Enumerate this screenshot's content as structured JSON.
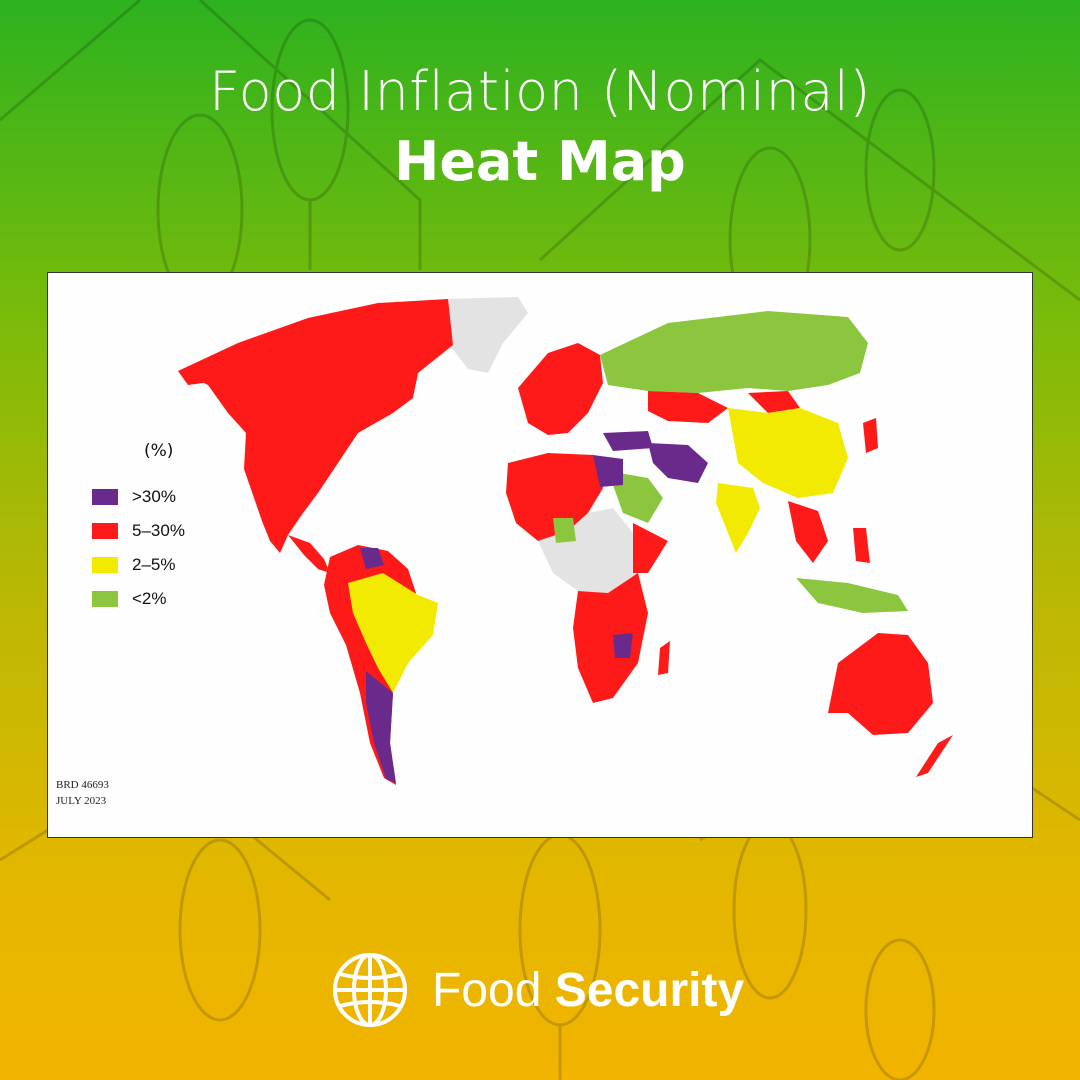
{
  "header": {
    "title_line1": "Food Inflation (Nominal)",
    "title_line2": "Heat Map"
  },
  "legend": {
    "title": "(%)",
    "items": [
      {
        "label": ">30%",
        "color": "#6a2a8c"
      },
      {
        "label": "5–30%",
        "color": "#ff1a1a"
      },
      {
        "label": "2–5%",
        "color": "#f2ea00"
      },
      {
        "label": "<2%",
        "color": "#8cc63f"
      }
    ],
    "no_data_color": "#e3e3e3"
  },
  "map_credit": {
    "code": "BRD 46693",
    "date": "JULY 2023"
  },
  "brand": {
    "name_light": "Food",
    "name_bold": "Security",
    "logo": "globe-icon"
  }
}
